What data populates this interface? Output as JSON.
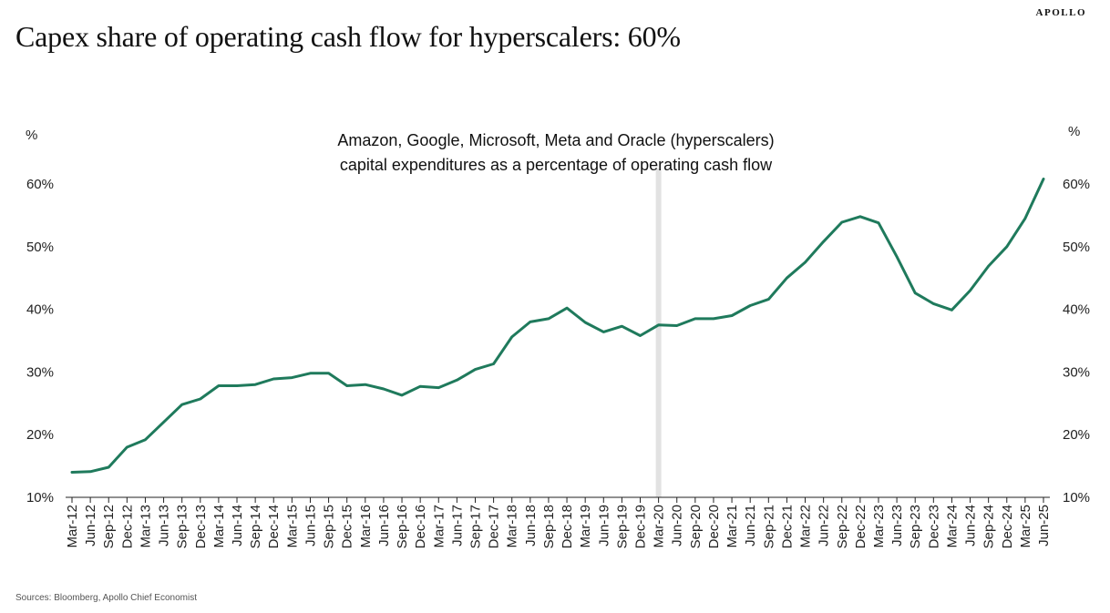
{
  "header": {
    "brand": "APOLLO",
    "title": "Capex share of operating cash flow for hyperscalers: 60%"
  },
  "footer": {
    "source": "Sources: Bloomberg, Apollo Chief Economist"
  },
  "chart_data": {
    "type": "line",
    "title": "Capex share of operating cash flow for hyperscalers: 60%",
    "annotation": [
      "Amazon, Google, Microsoft, Meta and Oracle (hyperscalers)",
      "capital expenditures as a percentage of operating cash flow"
    ],
    "ylabel_left": "%",
    "ylabel_right": "%",
    "ylim": [
      10,
      60
    ],
    "yticks": [
      10,
      20,
      30,
      40,
      50,
      60
    ],
    "ytick_labels": [
      "10%",
      "20%",
      "30%",
      "40%",
      "50%",
      "60%"
    ],
    "grid": false,
    "axes": "dual-y",
    "highlight_band": "Mar-20",
    "line_color": "#1f7a5c",
    "band_color": "#e2e2e2",
    "categories": [
      "Mar-12",
      "Jun-12",
      "Sep-12",
      "Dec-12",
      "Mar-13",
      "Jun-13",
      "Sep-13",
      "Dec-13",
      "Mar-14",
      "Jun-14",
      "Sep-14",
      "Dec-14",
      "Mar-15",
      "Jun-15",
      "Sep-15",
      "Dec-15",
      "Mar-16",
      "Jun-16",
      "Sep-16",
      "Dec-16",
      "Mar-17",
      "Jun-17",
      "Sep-17",
      "Dec-17",
      "Mar-18",
      "Jun-18",
      "Sep-18",
      "Dec-18",
      "Mar-19",
      "Jun-19",
      "Sep-19",
      "Dec-19",
      "Mar-20",
      "Jun-20",
      "Sep-20",
      "Dec-20",
      "Mar-21",
      "Jun-21",
      "Sep-21",
      "Dec-21",
      "Mar-22",
      "Jun-22",
      "Sep-22",
      "Dec-22",
      "Mar-23",
      "Jun-23",
      "Sep-23",
      "Dec-23",
      "Mar-24",
      "Jun-24",
      "Sep-24",
      "Dec-24",
      "Mar-25",
      "Jun-25"
    ],
    "series": [
      {
        "values": [
          14.0,
          14.1,
          14.8,
          18.0,
          19.2,
          22.0,
          24.8,
          25.7,
          27.8,
          27.8,
          28.0,
          28.9,
          29.1,
          29.8,
          29.8,
          27.8,
          28.0,
          27.3,
          26.3,
          27.7,
          27.5,
          28.7,
          30.4,
          31.3,
          35.6,
          38.0,
          38.5,
          40.2,
          37.9,
          36.4,
          37.3,
          35.8,
          37.5,
          37.4,
          38.5,
          38.5,
          39.0,
          40.6,
          41.6,
          45.0,
          47.5,
          50.8,
          53.9,
          54.8,
          53.8,
          48.4,
          42.6,
          40.9,
          39.9,
          43.0,
          46.9,
          50.0,
          54.5,
          60.8
        ]
      }
    ]
  }
}
